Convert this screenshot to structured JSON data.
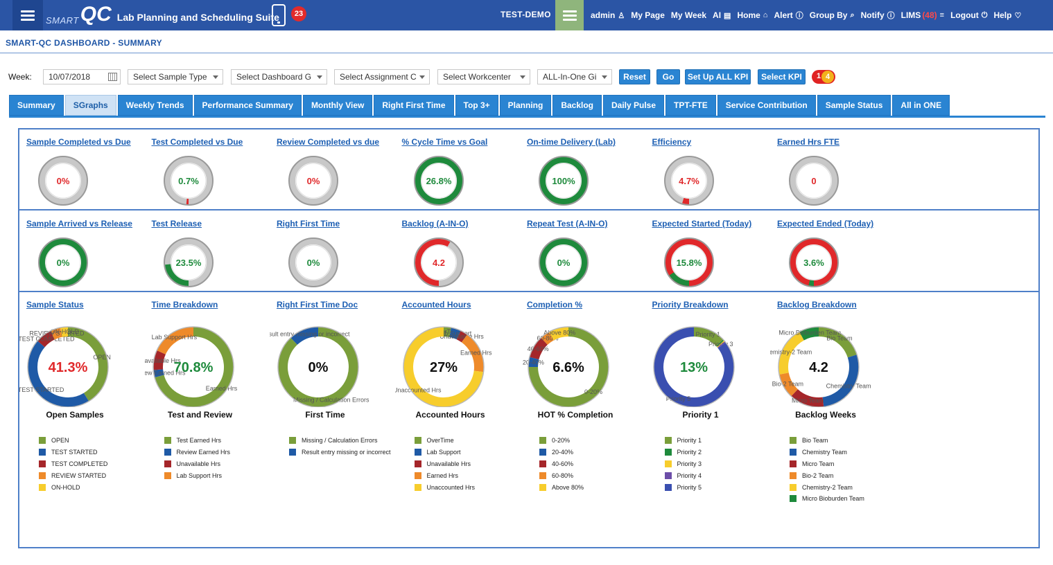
{
  "header": {
    "brand_small": "SMART",
    "brand_large": "QC",
    "suite_name": "Lab Planning and Scheduling Suite",
    "notification_count": "23",
    "environment": "TEST-DEMO",
    "nav": [
      {
        "label": "admin",
        "icon": "user-icon",
        "glyph": "♙"
      },
      {
        "label": "My Page",
        "icon": "",
        "glyph": ""
      },
      {
        "label": "My Week",
        "icon": "",
        "glyph": ""
      },
      {
        "label": "AI",
        "icon": "report-icon",
        "glyph": "▤"
      },
      {
        "label": "Home",
        "icon": "home-icon",
        "glyph": "⌂"
      },
      {
        "label": "Alert",
        "icon": "alert-icon",
        "glyph": "ⓘ"
      },
      {
        "label": "Group By",
        "icon": "search-icon",
        "glyph": "⌕"
      },
      {
        "label": "Notify",
        "icon": "notify-icon",
        "glyph": "ⓘ"
      },
      {
        "label": "LIMS",
        "icon": "database-icon",
        "glyph": "≡",
        "count": "(48)"
      },
      {
        "label": "Logout",
        "icon": "power-icon",
        "glyph": "⏻"
      },
      {
        "label": "Help",
        "icon": "help-icon",
        "glyph": "♡"
      }
    ]
  },
  "page": {
    "title": "SMART-QC DASHBOARD - SUMMARY"
  },
  "filters": {
    "week_label": "Week:",
    "week_value": "10/07/2018",
    "sample_type": "Select Sample Type",
    "dashboard_group": "Select Dashboard G",
    "assignment": "Select Assignment C",
    "workcenter": "Select Workcenter",
    "all_in_one": "ALL-In-One Gi",
    "reset": "Reset",
    "go": "Go",
    "setup_kpi": "Set Up ALL KPI",
    "select_kpi": "Select KPI",
    "kpi_badge_a": "1",
    "kpi_badge_b": "4"
  },
  "tabs": [
    "Summary",
    "SGraphs",
    "Weekly Trends",
    "Performance Summary",
    "Monthly View",
    "Right First Time",
    "Top 3+",
    "Planning",
    "Backlog",
    "Daily Pulse",
    "TPT-FTE",
    "Service Contribution",
    "Sample Status",
    "All in ONE"
  ],
  "active_tab": "SGraphs",
  "colors": {
    "green": "#1e8a3c",
    "red": "#e0282a",
    "grey": "#c8c8c8",
    "olive": "#7a9e3a",
    "blue": "#1f5aa6",
    "darkred": "#a5262a",
    "orange": "#ee8a2a",
    "yellow": "#f7cd2c",
    "purple": "#6c4ea8",
    "royal": "#3a4fb0"
  },
  "gauges_row1": [
    {
      "title": "Sample Completed vs Due",
      "value": "0%",
      "pct": 0,
      "ring": "grey",
      "value_color": "red"
    },
    {
      "title": "Test Completed vs Due",
      "value": "0.7%",
      "pct": 0.007,
      "ring": "grey",
      "value_color": "green",
      "arc": "red"
    },
    {
      "title": "Review Completed vs due",
      "value": "0%",
      "pct": 0,
      "ring": "grey",
      "value_color": "red"
    },
    {
      "title": "% Cycle Time vs Goal",
      "value": "26.8%",
      "pct": 1,
      "ring": "green",
      "value_color": "green"
    },
    {
      "title": "On-time Delivery (Lab)",
      "value": "100%",
      "pct": 1,
      "ring": "green",
      "value_color": "green"
    },
    {
      "title": "Efficiency",
      "value": "4.7%",
      "pct": 0.047,
      "ring": "grey",
      "value_color": "red",
      "arc": "red"
    },
    {
      "title": "Earned Hrs FTE",
      "value": "0",
      "pct": 0,
      "ring": "grey",
      "value_color": "red"
    }
  ],
  "gauges_row2": [
    {
      "title": "Sample Arrived vs Release",
      "value": "0%",
      "pct": 1,
      "ring": "green",
      "value_color": "green"
    },
    {
      "title": "Test Release",
      "value": "23.5%",
      "pct": 0.235,
      "ring": "grey",
      "value_color": "green",
      "arc": "green"
    },
    {
      "title": "Right First Time",
      "value": "0%",
      "pct": 0,
      "ring": "grey",
      "value_color": "green"
    },
    {
      "title": "Backlog (A-IN-O)",
      "value": "4.2",
      "pct": 0.58,
      "ring": "grey",
      "value_color": "red",
      "arc": "red"
    },
    {
      "title": "Repeat Test (A-IN-O)",
      "value": "0%",
      "pct": 1,
      "ring": "green",
      "value_color": "green"
    },
    {
      "title": "Expected Started (Today)",
      "value": "15.8%",
      "pct": 0.158,
      "ring": "red",
      "value_color": "green",
      "arc": "green"
    },
    {
      "title": "Expected Ended (Today)",
      "value": "3.6%",
      "pct": 0.036,
      "ring": "red",
      "value_color": "green",
      "arc": "green"
    }
  ],
  "chart_data": [
    {
      "type": "pie",
      "title": "Sample Status",
      "caption": "Open Samples",
      "center": "41.3%",
      "center_color": "red",
      "categories": [
        "OPEN",
        "TEST STARTED",
        "TEST COMPLETED",
        "REVIEW STARTED",
        "ON-HOLD"
      ],
      "values": [
        41.3,
        45.0,
        6.5,
        4.2,
        3.0
      ],
      "colors": [
        "olive",
        "blue",
        "darkred",
        "orange",
        "yellow"
      ],
      "slice_labels": [
        "OPEN",
        "TEST STARTED",
        "TEST COMPLETED",
        "REVIEW STARTED",
        "ON-HOLD"
      ]
    },
    {
      "type": "pie",
      "title": "Time Breakdown",
      "caption": "Test and Review",
      "center": "70.8%",
      "center_color": "green",
      "categories": [
        "Test Earned Hrs",
        "Review Earned Hrs",
        "Unavailable Hrs",
        "Lab Support Hrs"
      ],
      "values": [
        70.8,
        3.0,
        8.0,
        18.2
      ],
      "colors": [
        "olive",
        "blue",
        "darkred",
        "orange"
      ],
      "slice_labels": [
        "Earned Hrs",
        "Review Earned Hrs",
        "Unavailable Hrs",
        "Lab Support Hrs"
      ]
    },
    {
      "type": "pie",
      "title": "Right First Time Doc",
      "caption": "First Time",
      "center": "0%",
      "center_color": "black",
      "categories": [
        "Missing / Calculation Errors",
        "Result entry missing or incorrect"
      ],
      "values": [
        88,
        12
      ],
      "colors": [
        "olive",
        "blue"
      ],
      "slice_labels": [
        "Missing / Calculation Errors",
        "Result entry missing or incorrect"
      ]
    },
    {
      "type": "pie",
      "title": "Accounted Hours",
      "caption": "Accounted Hours",
      "center": "27%",
      "center_color": "black",
      "categories": [
        "OverTime",
        "Lab Support",
        "Unavailable Hrs",
        "Earned Hrs",
        "Unaccounted Hrs"
      ],
      "values": [
        3,
        4,
        3,
        17,
        73
      ],
      "colors": [
        "olive",
        "blue",
        "darkred",
        "orange",
        "yellow"
      ],
      "slice_labels": [
        "OverTime",
        "Lab Support",
        "Unavailable Hrs",
        "Earned Hrs",
        "Unaccounted Hrs"
      ]
    },
    {
      "type": "pie",
      "title": "Completion %",
      "caption": "HOT % Completion",
      "center": "6.6%",
      "center_color": "black",
      "categories": [
        "0-20%",
        "20-40%",
        "40-60%",
        "60-80%",
        "Above 80%"
      ],
      "values": [
        75,
        4,
        9,
        4,
        8
      ],
      "colors": [
        "olive",
        "blue",
        "darkred",
        "orange",
        "yellow"
      ],
      "slice_labels": [
        "0-20%",
        "20-40%",
        "40-60%",
        "60-80%",
        "Above 80%"
      ]
    },
    {
      "type": "pie",
      "title": "Priority Breakdown",
      "caption": "Priority 1",
      "center": "13%",
      "center_color": "green",
      "categories": [
        "Priority 1",
        "Priority 2",
        "Priority 3",
        "Priority 4",
        "Priority 5"
      ],
      "values": [
        13,
        0.5,
        0.5,
        0.5,
        85.5
      ],
      "colors": [
        "olive",
        "green",
        "yellow",
        "purple",
        "royal"
      ],
      "slice_labels": [
        "Priority 1",
        "",
        "Priority 3",
        "",
        "Priority 5"
      ]
    },
    {
      "type": "pie",
      "title": "Backlog Breakdown",
      "caption": "Backlog Weeks",
      "center": "4.2",
      "center_color": "black",
      "categories": [
        "Bio Team",
        "Chemistry Team",
        "Micro Team",
        "Bio-2 Team",
        "Chemistry-2 Team",
        "Micro Bioburden Team"
      ],
      "values": [
        20,
        28,
        14,
        10,
        20,
        8
      ],
      "colors": [
        "olive",
        "blue",
        "darkred",
        "orange",
        "yellow",
        "green"
      ],
      "slice_labels": [
        "Bio Team",
        "Chemistry Team",
        "Micro Team",
        "Bio-2 Team",
        "Chemistry-2 Team",
        "Micro Bioburden Team"
      ]
    }
  ]
}
